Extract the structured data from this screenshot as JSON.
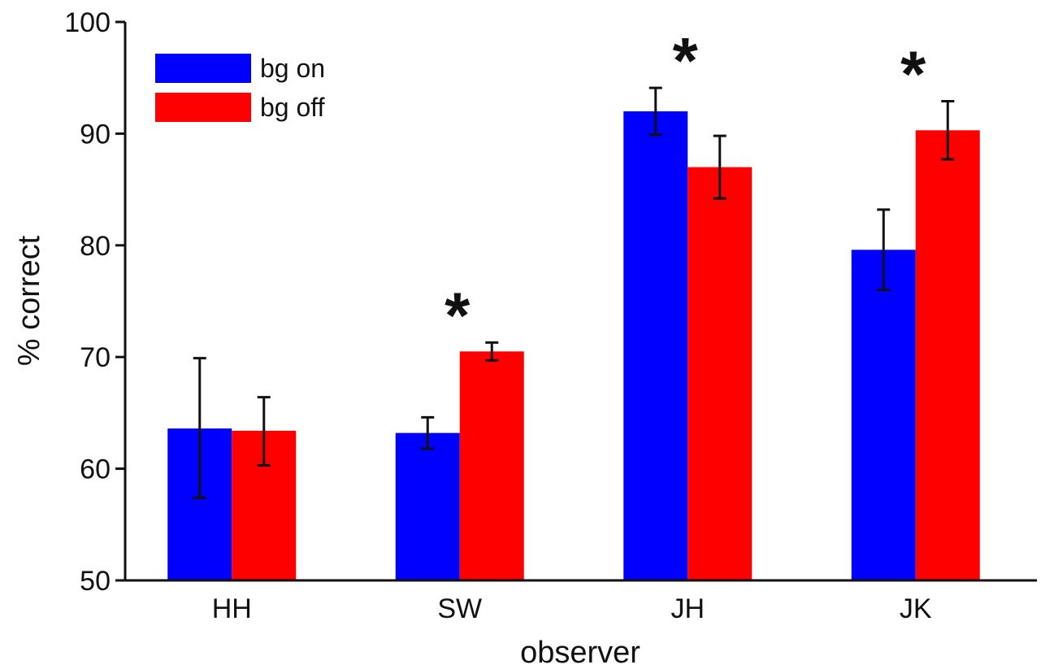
{
  "chart_data": {
    "type": "bar",
    "categories": [
      "HH",
      "SW",
      "JH",
      "JK"
    ],
    "series": [
      {
        "name": "bg on",
        "color": "#0000ff",
        "values": [
          63.6,
          63.2,
          92.0,
          79.6
        ],
        "error_low": [
          57.4,
          61.8,
          89.9,
          76.0
        ],
        "error_high": [
          69.9,
          64.6,
          94.1,
          83.2
        ]
      },
      {
        "name": "bg off",
        "color": "#ff0000",
        "values": [
          63.4,
          70.5,
          87.0,
          90.3
        ],
        "error_low": [
          60.3,
          69.7,
          84.2,
          87.7
        ],
        "error_high": [
          66.4,
          71.3,
          89.8,
          92.9
        ]
      }
    ],
    "significance": [
      {
        "category": "SW",
        "label": "*"
      },
      {
        "category": "JH",
        "label": "*"
      },
      {
        "category": "JK",
        "label": "*"
      }
    ],
    "ylabel": "% correct",
    "xlabel": "observer",
    "ylim": [
      50,
      100
    ],
    "yticks": [
      50,
      60,
      70,
      80,
      90,
      100
    ],
    "legend_position": "top-left",
    "grid": false
  }
}
